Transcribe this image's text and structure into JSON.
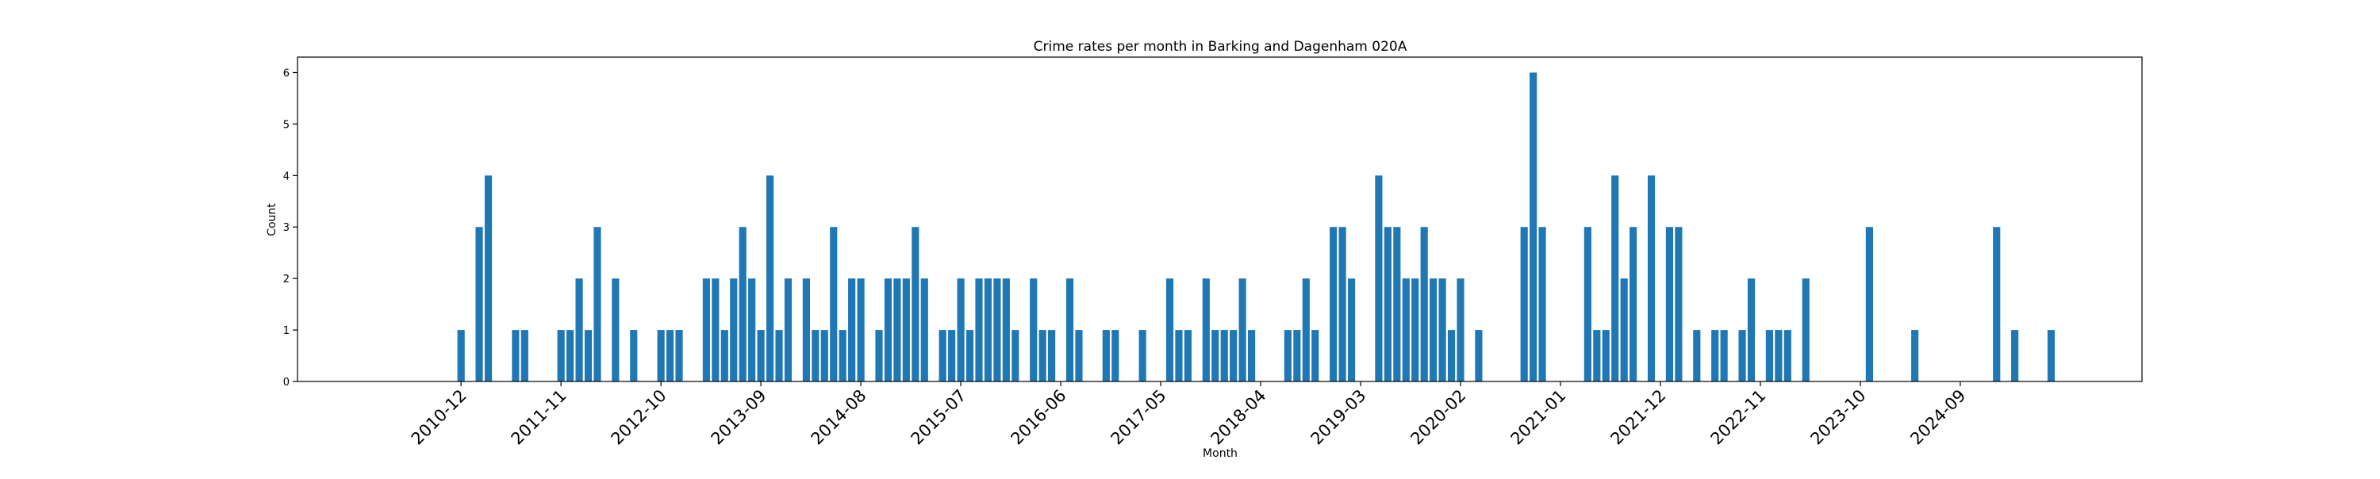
{
  "chart_data": {
    "type": "bar",
    "title": "Crime rates per month in Barking and Dagenham 020A",
    "xlabel": "Month",
    "ylabel": "Count",
    "ylim": [
      0,
      6.3
    ],
    "yticks": [
      0,
      1,
      2,
      3,
      4,
      5,
      6
    ],
    "xlim": [
      "2009-06",
      "2026-05"
    ],
    "xticks": [
      "2010-12",
      "2011-11",
      "2012-10",
      "2013-09",
      "2014-08",
      "2015-07",
      "2016-06",
      "2017-05",
      "2018-04",
      "2019-03",
      "2020-02",
      "2021-01",
      "2021-12",
      "2022-11",
      "2023-10",
      "2024-09"
    ],
    "grid": false,
    "bar_color": "#1f77b4",
    "x": [
      "2010-12",
      "2011-02",
      "2011-03",
      "2011-06",
      "2011-07",
      "2011-11",
      "2011-12",
      "2012-01",
      "2012-02",
      "2012-03",
      "2012-05",
      "2012-07",
      "2012-10",
      "2012-11",
      "2012-12",
      "2013-03",
      "2013-04",
      "2013-05",
      "2013-06",
      "2013-07",
      "2013-08",
      "2013-09",
      "2013-10",
      "2013-11",
      "2013-12",
      "2014-02",
      "2014-03",
      "2014-04",
      "2014-05",
      "2014-06",
      "2014-07",
      "2014-08",
      "2014-10",
      "2014-11",
      "2014-12",
      "2015-01",
      "2015-02",
      "2015-03",
      "2015-05",
      "2015-06",
      "2015-07",
      "2015-08",
      "2015-09",
      "2015-10",
      "2015-11",
      "2015-12",
      "2016-01",
      "2016-03",
      "2016-04",
      "2016-05",
      "2016-07",
      "2016-08",
      "2016-11",
      "2016-12",
      "2017-03",
      "2017-06",
      "2017-07",
      "2017-08",
      "2017-10",
      "2017-11",
      "2017-12",
      "2018-01",
      "2018-02",
      "2018-03",
      "2018-07",
      "2018-08",
      "2018-09",
      "2018-10",
      "2018-12",
      "2019-01",
      "2019-02",
      "2019-05",
      "2019-06",
      "2019-07",
      "2019-08",
      "2019-09",
      "2019-10",
      "2019-11",
      "2019-12",
      "2020-01",
      "2020-02",
      "2020-04",
      "2020-09",
      "2020-10",
      "2020-11",
      "2021-04",
      "2021-05",
      "2021-06",
      "2021-07",
      "2021-08",
      "2021-09",
      "2021-11",
      "2022-01",
      "2022-02",
      "2022-04",
      "2022-06",
      "2022-07",
      "2022-09",
      "2022-10",
      "2022-12",
      "2023-01",
      "2023-02",
      "2023-04",
      "2023-11",
      "2024-04",
      "2025-01",
      "2025-03",
      "2025-07"
    ],
    "values": [
      1,
      3,
      4,
      1,
      1,
      1,
      1,
      2,
      1,
      3,
      2,
      1,
      1,
      1,
      1,
      2,
      2,
      1,
      2,
      3,
      2,
      1,
      4,
      1,
      2,
      2,
      1,
      1,
      3,
      1,
      2,
      2,
      1,
      2,
      2,
      2,
      3,
      2,
      1,
      1,
      2,
      1,
      2,
      2,
      2,
      2,
      1,
      2,
      1,
      1,
      2,
      1,
      1,
      1,
      1,
      2,
      1,
      1,
      2,
      1,
      1,
      1,
      2,
      1,
      1,
      1,
      2,
      1,
      3,
      3,
      2,
      4,
      3,
      3,
      2,
      2,
      3,
      2,
      2,
      1,
      2,
      1,
      3,
      6,
      3,
      3,
      1,
      1,
      4,
      2,
      3,
      4,
      3,
      3,
      1,
      1,
      1,
      1,
      2,
      1,
      1,
      1,
      2,
      3,
      1,
      3,
      1,
      1
    ]
  }
}
